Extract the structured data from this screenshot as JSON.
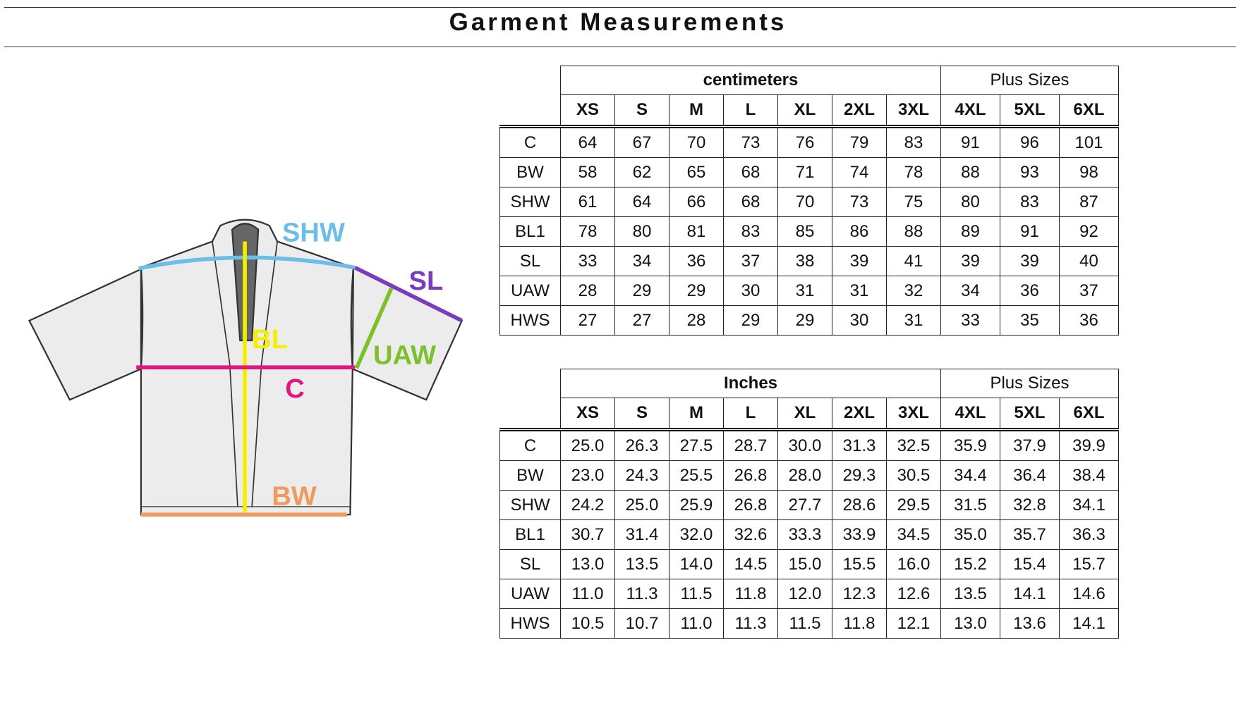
{
  "title": "Garment Measurements",
  "diagram": {
    "labels": {
      "SHW": "SHW",
      "SL": "SL",
      "BL": "BL",
      "UAW": "UAW",
      "C": "C",
      "BW": "BW"
    },
    "colors": {
      "SHW": "#6cbde8",
      "SL": "#7a3bbf",
      "BL": "#f4ee00",
      "UAW": "#7cc02a",
      "C": "#e0177f",
      "BW": "#f09a60"
    }
  },
  "tables": [
    {
      "unit": "centimeters",
      "plus_label": "Plus Sizes",
      "sizes": [
        "XS",
        "S",
        "M",
        "L",
        "XL",
        "2XL",
        "3XL",
        "4XL",
        "5XL",
        "6XL"
      ],
      "rows": [
        {
          "label": "C",
          "values": [
            "64",
            "67",
            "70",
            "73",
            "76",
            "79",
            "83",
            "91",
            "96",
            "101"
          ]
        },
        {
          "label": "BW",
          "values": [
            "58",
            "62",
            "65",
            "68",
            "71",
            "74",
            "78",
            "88",
            "93",
            "98"
          ]
        },
        {
          "label": "SHW",
          "values": [
            "61",
            "64",
            "66",
            "68",
            "70",
            "73",
            "75",
            "80",
            "83",
            "87"
          ]
        },
        {
          "label": "BL1",
          "values": [
            "78",
            "80",
            "81",
            "83",
            "85",
            "86",
            "88",
            "89",
            "91",
            "92"
          ]
        },
        {
          "label": "SL",
          "values": [
            "33",
            "34",
            "36",
            "37",
            "38",
            "39",
            "41",
            "39",
            "39",
            "40"
          ]
        },
        {
          "label": "UAW",
          "values": [
            "28",
            "29",
            "29",
            "30",
            "31",
            "31",
            "32",
            "34",
            "36",
            "37"
          ]
        },
        {
          "label": "HWS",
          "values": [
            "27",
            "27",
            "28",
            "29",
            "29",
            "30",
            "31",
            "33",
            "35",
            "36"
          ]
        }
      ]
    },
    {
      "unit": "Inches",
      "plus_label": "Plus Sizes",
      "sizes": [
        "XS",
        "S",
        "M",
        "L",
        "XL",
        "2XL",
        "3XL",
        "4XL",
        "5XL",
        "6XL"
      ],
      "rows": [
        {
          "label": "C",
          "values": [
            "25.0",
            "26.3",
            "27.5",
            "28.7",
            "30.0",
            "31.3",
            "32.5",
            "35.9",
            "37.9",
            "39.9"
          ]
        },
        {
          "label": "BW",
          "values": [
            "23.0",
            "24.3",
            "25.5",
            "26.8",
            "28.0",
            "29.3",
            "30.5",
            "34.4",
            "36.4",
            "38.4"
          ]
        },
        {
          "label": "SHW",
          "values": [
            "24.2",
            "25.0",
            "25.9",
            "26.8",
            "27.7",
            "28.6",
            "29.5",
            "31.5",
            "32.8",
            "34.1"
          ]
        },
        {
          "label": "BL1",
          "values": [
            "30.7",
            "31.4",
            "32.0",
            "32.6",
            "33.3",
            "33.9",
            "34.5",
            "35.0",
            "35.7",
            "36.3"
          ]
        },
        {
          "label": "SL",
          "values": [
            "13.0",
            "13.5",
            "14.0",
            "14.5",
            "15.0",
            "15.5",
            "16.0",
            "15.2",
            "15.4",
            "15.7"
          ]
        },
        {
          "label": "UAW",
          "values": [
            "11.0",
            "11.3",
            "11.5",
            "11.8",
            "12.0",
            "12.3",
            "12.6",
            "13.5",
            "14.1",
            "14.6"
          ]
        },
        {
          "label": "HWS",
          "values": [
            "10.5",
            "10.7",
            "11.0",
            "11.3",
            "11.5",
            "11.8",
            "12.1",
            "13.0",
            "13.6",
            "14.1"
          ]
        }
      ]
    }
  ]
}
